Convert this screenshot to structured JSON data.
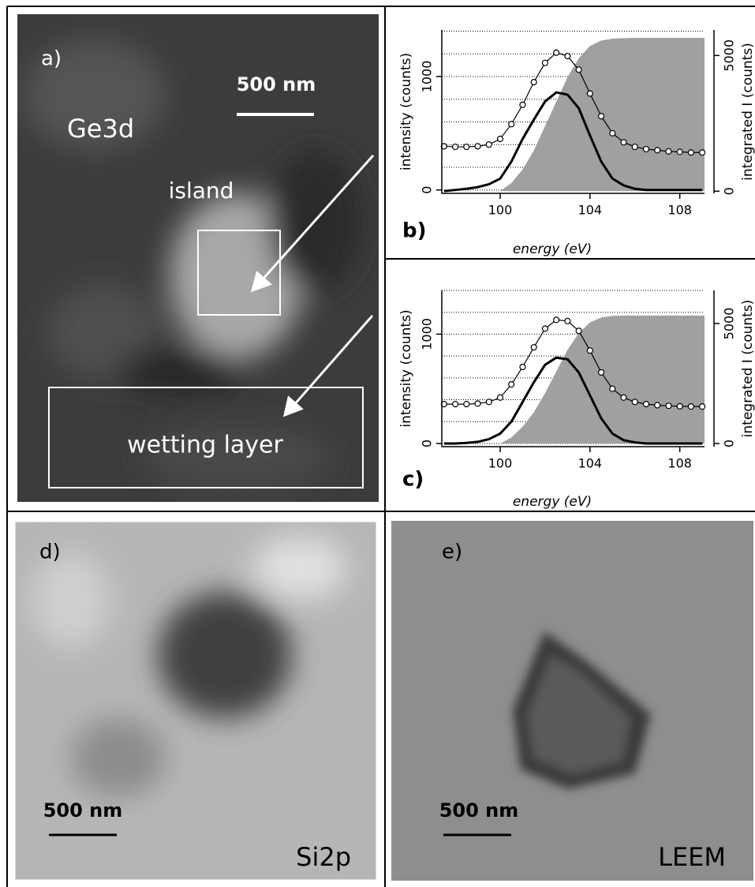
{
  "panels": {
    "a": {
      "label": "a)",
      "scale": "500 nm",
      "element": "Ge3d",
      "region1": "island",
      "region2": "wetting layer"
    },
    "d": {
      "label": "d)",
      "scale": "500 nm",
      "element": "Si2p"
    },
    "e": {
      "label": "e)",
      "scale": "500 nm",
      "method": "LEEM"
    }
  },
  "chart_data": [
    {
      "type": "line",
      "label": "b)",
      "xlabel": "energy (eV)",
      "ylabel": "intensity (counts)",
      "y2label": "integrated I (counts)",
      "x": [
        97.5,
        98,
        98.5,
        99,
        99.5,
        100,
        100.5,
        101,
        101.5,
        102,
        102.5,
        103,
        103.5,
        104,
        104.5,
        105,
        105.5,
        106,
        106.5,
        107,
        107.5,
        108,
        108.5,
        109
      ],
      "xlim": [
        97.4,
        109.1
      ],
      "xticks": [
        100,
        104,
        108
      ],
      "ylim": [
        -30,
        1410
      ],
      "yticks": [
        0,
        1000
      ],
      "y2lim": [
        -80,
        5940
      ],
      "y2ticks": [
        0,
        5000
      ],
      "ygrid": [
        0,
        200,
        400,
        600,
        800,
        1000,
        1200,
        1400
      ],
      "series": [
        {
          "kind": "area",
          "axis": "y2",
          "color": "#a0a0a0",
          "values": [
            0,
            0,
            0,
            0,
            0,
            0,
            300,
            800,
            1500,
            2400,
            3300,
            4200,
            4900,
            5350,
            5550,
            5620,
            5640,
            5650,
            5650,
            5650,
            5650,
            5650,
            5650,
            5650
          ]
        },
        {
          "kind": "markers",
          "color": "#000000",
          "values": [
            385,
            380,
            380,
            385,
            400,
            450,
            580,
            750,
            950,
            1120,
            1210,
            1180,
            1060,
            850,
            650,
            500,
            420,
            380,
            360,
            350,
            340,
            335,
            330,
            330
          ]
        },
        {
          "kind": "thick",
          "color": "#000000",
          "values": [
            -10,
            0,
            10,
            25,
            50,
            100,
            250,
            450,
            620,
            780,
            860,
            840,
            720,
            480,
            250,
            100,
            40,
            10,
            0,
            0,
            0,
            0,
            0,
            0
          ]
        }
      ]
    },
    {
      "type": "line",
      "label": "c)",
      "xlabel": "energy (eV)",
      "ylabel": "intensity (counts)",
      "y2label": "integrated I (counts)",
      "x": [
        97.5,
        98,
        98.5,
        99,
        99.5,
        100,
        100.5,
        101,
        101.5,
        102,
        102.5,
        103,
        103.5,
        104,
        104.5,
        105,
        105.5,
        106,
        106.5,
        107,
        107.5,
        108,
        108.5,
        109
      ],
      "xlim": [
        97.4,
        109.1
      ],
      "xticks": [
        100,
        104,
        108
      ],
      "ylim": [
        -29,
        1400
      ],
      "yticks": [
        0,
        1000
      ],
      "y2lim": [
        -132,
        6380
      ],
      "y2ticks": [
        0,
        5000
      ],
      "ygrid": [
        0,
        200,
        400,
        600,
        800,
        1000,
        1200,
        1400
      ],
      "series": [
        {
          "kind": "area",
          "axis": "y2",
          "color": "#a0a0a0",
          "values": [
            0,
            0,
            0,
            0,
            0,
            0,
            250,
            700,
            1300,
            2100,
            3000,
            3900,
            4600,
            5050,
            5250,
            5320,
            5330,
            5330,
            5330,
            5330,
            5330,
            5330,
            5330,
            5330
          ]
        },
        {
          "kind": "markers",
          "color": "#000000",
          "values": [
            360,
            360,
            360,
            365,
            380,
            420,
            540,
            700,
            880,
            1050,
            1130,
            1120,
            1030,
            850,
            650,
            500,
            420,
            380,
            360,
            350,
            345,
            340,
            338,
            338
          ]
        },
        {
          "kind": "thick",
          "color": "#000000",
          "values": [
            0,
            0,
            5,
            15,
            40,
            90,
            200,
            380,
            560,
            720,
            785,
            770,
            650,
            440,
            230,
            90,
            30,
            10,
            0,
            0,
            0,
            0,
            0,
            0
          ]
        }
      ]
    }
  ]
}
